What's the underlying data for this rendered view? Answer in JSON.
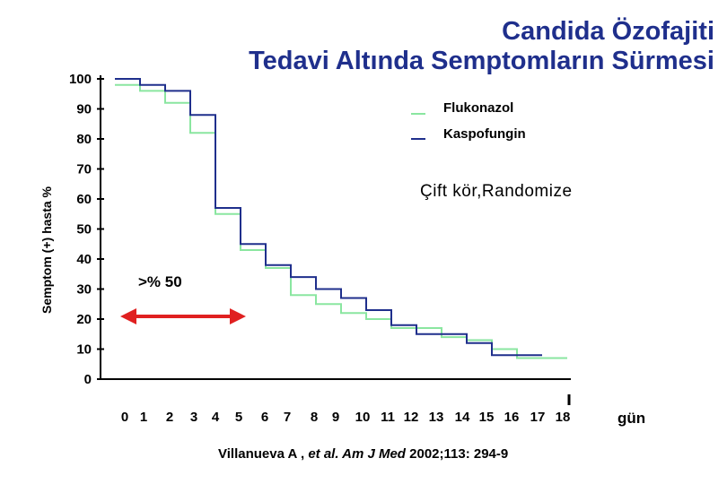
{
  "title_line1": "Candida Özofajiti",
  "title_line2": "Tedavi Altında Semptomların Sürmesi",
  "colors": {
    "title": "#1f2f8c",
    "arrow": "#e02020",
    "text": "#000000"
  },
  "legend": [
    {
      "name": "Flukonazol",
      "color": "#8ae6a0"
    },
    {
      "name": "Kaspofungin",
      "color": "#1f2f8c"
    }
  ],
  "note": "Çift kör,Randomize",
  "arrow_label": ">% 50",
  "citation": {
    "authors": "Villanueva  A , ",
    "journal": "et al. Am J Med",
    "ref": "  2002;113: 294-9"
  },
  "chart_data": {
    "type": "line",
    "step": true,
    "ylabel": "Semptom (+) hasta  %",
    "xunit": "gün",
    "y_ticks": [
      100,
      90,
      80,
      70,
      60,
      50,
      40,
      30,
      20,
      10,
      0
    ],
    "x_ticks": [
      0,
      1,
      2,
      3,
      4,
      5,
      6,
      7,
      8,
      9,
      10,
      11,
      12,
      13,
      14,
      15,
      16,
      17,
      18
    ],
    "ylim": [
      0,
      100
    ],
    "xlim": [
      0,
      18
    ],
    "series": [
      {
        "name": "Flukonazol",
        "color": "#8ae6a0",
        "x": [
          0,
          1,
          2,
          3,
          4,
          5,
          6,
          7,
          8,
          9,
          10,
          11,
          12,
          13,
          14,
          15,
          16,
          17
        ],
        "y": [
          98,
          96,
          92,
          82,
          55,
          43,
          37,
          28,
          25,
          22,
          20,
          17,
          17,
          14,
          13,
          10,
          7,
          7
        ]
      },
      {
        "name": "Kaspofungin",
        "color": "#1f2f8c",
        "x": [
          0,
          1,
          2,
          3,
          4,
          5,
          6,
          7,
          8,
          9,
          10,
          11,
          12,
          13,
          14,
          15,
          16
        ],
        "y": [
          100,
          98,
          96,
          88,
          57,
          45,
          38,
          34,
          30,
          27,
          23,
          18,
          15,
          15,
          12,
          8,
          8
        ]
      }
    ],
    "annotation": {
      "text": ">% 50",
      "x_from": 0,
      "x_to": 5
    }
  }
}
